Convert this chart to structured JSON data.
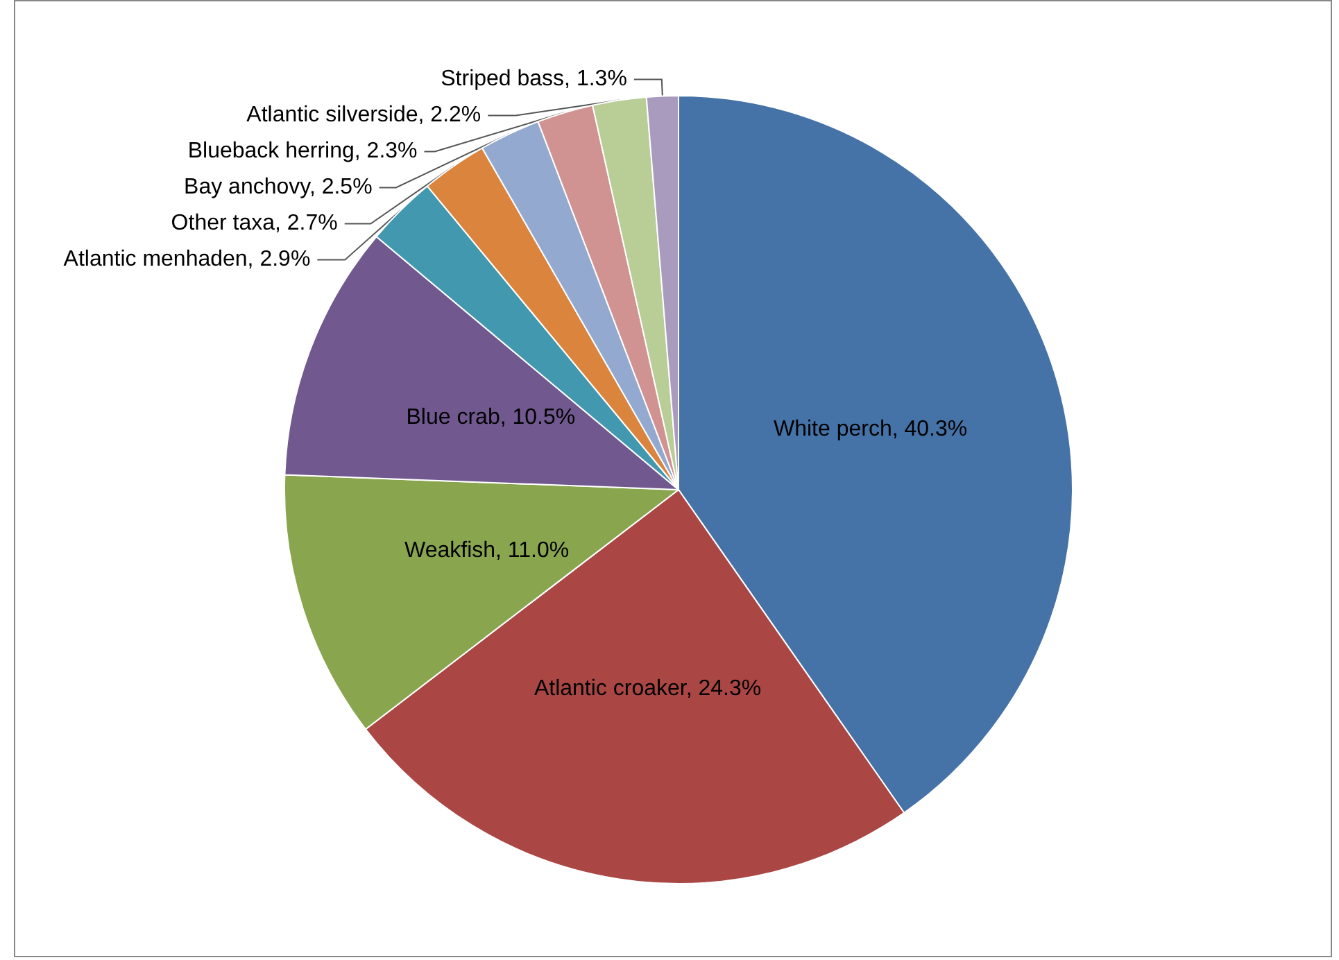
{
  "chart_data": {
    "type": "pie",
    "categories": [
      "White perch",
      "Atlantic croaker",
      "Weakfish",
      "Blue crab",
      "Atlantic menhaden",
      "Other taxa",
      "Bay anchovy",
      "Blueback herring",
      "Atlantic silverside",
      "Striped bass"
    ],
    "values": [
      40.3,
      24.3,
      11.0,
      10.5,
      2.9,
      2.7,
      2.5,
      2.3,
      2.2,
      1.3
    ],
    "value_labels": [
      "40.3%",
      "24.3%",
      "11.0%",
      "10.5%",
      "2.9%",
      "2.7%",
      "2.5%",
      "2.3%",
      "2.2%",
      "1.3%"
    ],
    "colors": [
      "#4572a7",
      "#aa4643",
      "#89a54e",
      "#71588f",
      "#4198af",
      "#db843d",
      "#93a9cf",
      "#d19392",
      "#b9cd96",
      "#a99bbd"
    ],
    "legend": false
  }
}
